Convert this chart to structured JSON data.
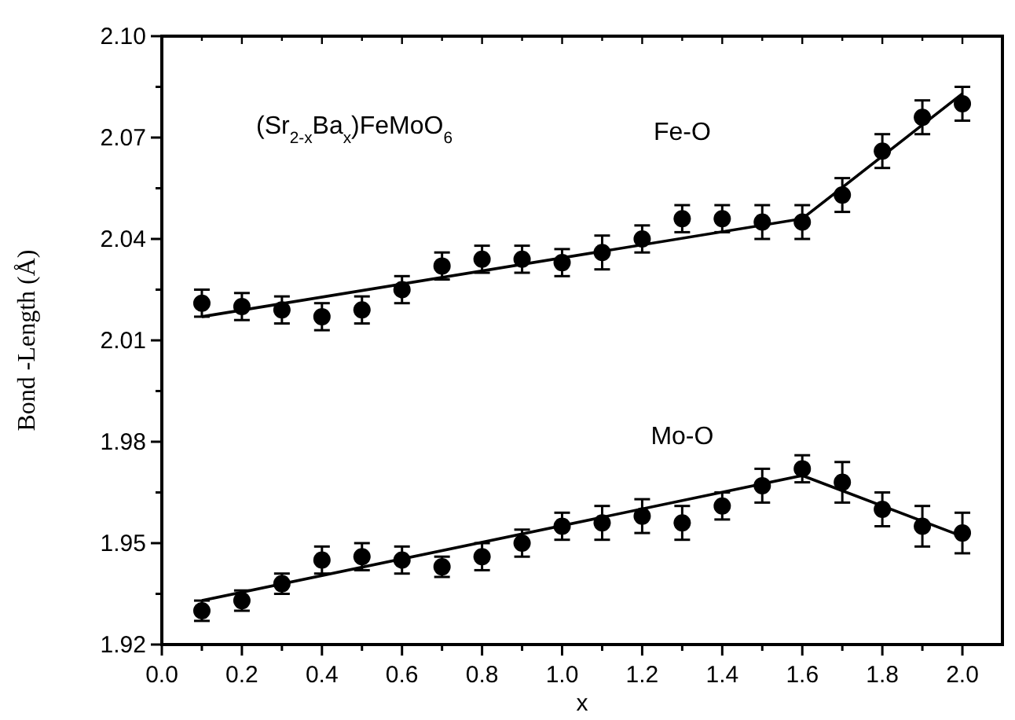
{
  "chart_data": {
    "type": "scatter",
    "xlabel": "x",
    "ylabel": "Bond -Length (Å)",
    "annotations": [
      "(Sr$_{2-x}$Ba$_{x}$)FeMoO$_{6}$"
    ],
    "x": [
      0.1,
      0.2,
      0.3,
      0.4,
      0.5,
      0.6,
      0.7,
      0.8,
      0.9,
      1.0,
      1.1,
      1.2,
      1.3,
      1.4,
      1.5,
      1.6,
      1.7,
      1.8,
      1.9,
      2.0
    ],
    "xlim": [
      0,
      2.1
    ],
    "xticks": [
      {
        "value": 0,
        "label": "0.0"
      },
      {
        "value": 0.1,
        "label": null
      },
      0.2,
      {
        "value": 0.3,
        "label": null
      },
      0.4,
      {
        "value": 0.5,
        "label": null
      },
      0.6,
      {
        "value": 0.7,
        "label": null
      },
      0.8,
      {
        "value": 0.9,
        "label": null
      },
      {
        "value": 1.0,
        "label": "1.0"
      },
      {
        "value": 1.1,
        "label": null
      },
      1.2,
      {
        "value": 1.3,
        "label": null
      },
      1.4,
      {
        "value": 1.5,
        "label": null
      },
      1.6,
      {
        "value": 1.7,
        "label": null
      },
      1.8,
      {
        "value": 1.9,
        "label": null
      },
      {
        "value": 2.0,
        "label": "2.0"
      }
    ],
    "ylim": [
      1.92,
      2.1
    ],
    "yticks": [
      1.92,
      {
        "value": 1.935,
        "label": null
      },
      1.95,
      {
        "value": 1.965,
        "label": null
      },
      1.98,
      {
        "value": 1.995,
        "label": null
      },
      2.01,
      {
        "value": 2.025,
        "label": null
      },
      2.04,
      {
        "value": 2.055,
        "label": null
      },
      2.07,
      {
        "value": 2.085,
        "label": null
      },
      {
        "value": 2.1,
        "label": "2.10"
      }
    ],
    "grid": false,
    "marker": "circle",
    "series": [
      {
        "name": "Fe-O",
        "color": "#000000",
        "values": [
          2.021,
          2.02,
          2.019,
          2.017,
          2.019,
          2.025,
          2.032,
          2.034,
          2.034,
          2.033,
          2.036,
          2.04,
          2.046,
          2.046,
          2.045,
          2.045,
          2.053,
          2.066,
          2.076,
          2.08
        ],
        "errors": [
          0.004,
          0.004,
          0.004,
          0.004,
          0.004,
          0.004,
          0.004,
          0.004,
          0.004,
          0.004,
          0.005,
          0.004,
          0.004,
          0.004,
          0.005,
          0.005,
          0.005,
          0.005,
          0.005,
          0.005
        ]
      },
      {
        "name": "Mo-O",
        "color": "#000000",
        "values": [
          1.93,
          1.933,
          1.938,
          1.945,
          1.946,
          1.945,
          1.943,
          1.946,
          1.95,
          1.955,
          1.956,
          1.958,
          1.956,
          1.961,
          1.967,
          1.972,
          1.968,
          1.96,
          1.955,
          1.953
        ],
        "errors": [
          0.003,
          0.003,
          0.003,
          0.004,
          0.004,
          0.004,
          0.003,
          0.004,
          0.004,
          0.004,
          0.005,
          0.005,
          0.005,
          0.004,
          0.005,
          0.004,
          0.006,
          0.005,
          0.006,
          0.006
        ]
      },
      {
        "type": "line",
        "color": "#000000",
        "x": [
          0.1,
          1.6,
          2.0
        ],
        "values": [
          2.017,
          2.046,
          2.083
        ],
        "marker": "none"
      },
      {
        "type": "line",
        "color": "#000000",
        "x": [
          0.1,
          1.6,
          2.0
        ],
        "values": [
          1.933,
          1.97,
          1.952
        ],
        "marker": "none"
      }
    ]
  }
}
